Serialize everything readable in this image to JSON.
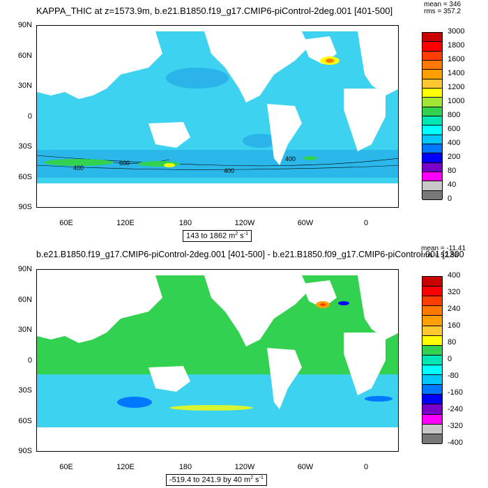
{
  "panel_top": {
    "title": "KAPPA_THIC at z=1573.9m, b.e21.B1850.f19_g17.CMIP6-piControl-2deg.001 [401-500]",
    "stats_mean": "mean = 346",
    "stats_rms": "rms = 357.2",
    "range_label": "143 to 1862 m",
    "range_unit_sup": "2",
    "range_unit_tail": " s",
    "range_unit_sup2": "-1",
    "contour_labels": [
      "600",
      "400",
      "400",
      "400"
    ],
    "colorbar_labels": [
      "3000",
      "1800",
      "1600",
      "1400",
      "1200",
      "1000",
      "800",
      "600",
      "400",
      "200",
      "80",
      "40",
      "0"
    ],
    "colorbar_colors": [
      "#c80000",
      "#ff0000",
      "#ff3c00",
      "#ff7800",
      "#ffa000",
      "#ffc830",
      "#ffff00",
      "#a0e632",
      "#32d250",
      "#00e6b4",
      "#00ffff",
      "#00c8ff",
      "#0078ff",
      "#0000ff",
      "#7800c8",
      "#ff00ff",
      "#c8c8c8",
      "#787878"
    ]
  },
  "panel_bottom": {
    "title": "b.e21.B1850.f19_g17.CMIP6-piControl-2deg.001 [401-500] - b.e21.B1850.f09_g17.CMIP6-piControl.001 [1300",
    "stats_mean": "mean = -11.41",
    "stats_rms": "rms = 52.88",
    "range_label": "-519.4 to 241.9 by 40 m",
    "range_unit_sup": "2",
    "range_unit_tail": " s",
    "range_unit_sup2": "-1",
    "colorbar_labels": [
      "400",
      "320",
      "240",
      "160",
      "80",
      "0",
      "-80",
      "-160",
      "-240",
      "-320",
      "-400"
    ],
    "colorbar_colors": [
      "#c80000",
      "#ff0000",
      "#ff3c00",
      "#ff7800",
      "#ffa000",
      "#ffc830",
      "#ffff00",
      "#32d250",
      "#00e6b4",
      "#00ffff",
      "#00c8ff",
      "#0078ff",
      "#0000ff",
      "#7800c8",
      "#ff00ff",
      "#c8c8c8",
      "#787878"
    ]
  },
  "axes": {
    "lat_labels": [
      "90N",
      "60N",
      "30N",
      "0",
      "30S",
      "60S",
      "90S"
    ],
    "lon_labels": [
      "60E",
      "120E",
      "180",
      "120W",
      "60W",
      "0"
    ]
  },
  "colors": {
    "ocean_top": "#3cd2f0",
    "ocean_top_dark": "#1ea0e6",
    "ocean_bottom": "#32d250",
    "ocean_bottom_cyan": "#3cd2f0",
    "land": "#ffffff"
  }
}
